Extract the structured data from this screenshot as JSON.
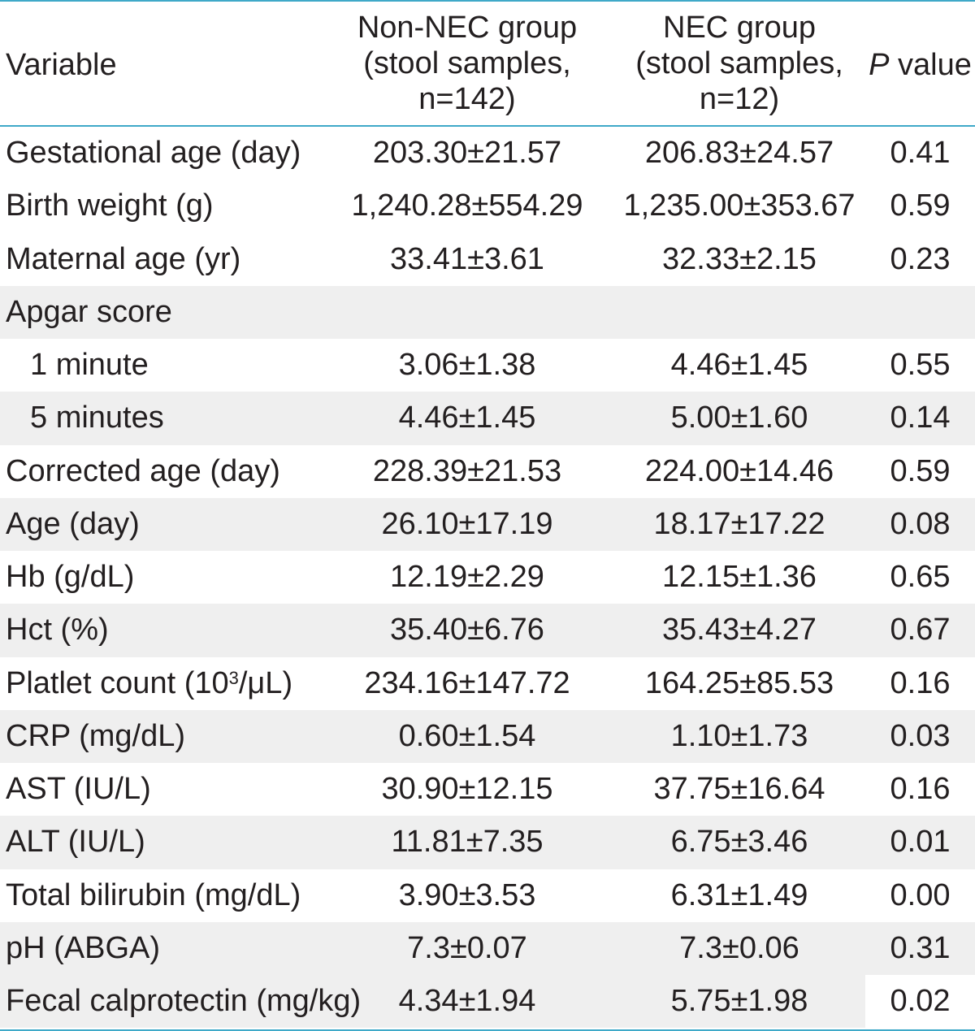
{
  "header": {
    "variable": "Variable",
    "non_nec": [
      "Non-NEC group",
      "(stool samples,",
      "n=142)"
    ],
    "nec": [
      "NEC group",
      "(stool samples,",
      "n=12)"
    ],
    "p_italic": "P",
    "p_rest": " value"
  },
  "rows": [
    {
      "label": "Gestational age (day)",
      "non_nec": "203.30±21.57",
      "nec": "206.83±24.57",
      "p": "0.41",
      "shade": false
    },
    {
      "label": "Birth weight (g)",
      "non_nec": "1,240.28±554.29",
      "nec": "1,235.00±353.67",
      "p": "0.59",
      "shade": false
    },
    {
      "label": "Maternal age (yr)",
      "non_nec": "33.41±3.61",
      "nec": "32.33±2.15",
      "p": "0.23",
      "shade": false
    },
    {
      "label": "Apgar score",
      "non_nec": "",
      "nec": "",
      "p": "",
      "shade": true
    },
    {
      "label": "1 minute",
      "non_nec": "3.06±1.38",
      "nec": "4.46±1.45",
      "p": "0.55",
      "shade": false,
      "indent": true
    },
    {
      "label": "5 minutes",
      "non_nec": "4.46±1.45",
      "nec": "5.00±1.60",
      "p": "0.14",
      "shade": true,
      "indent": true
    },
    {
      "label": "Corrected age (day)",
      "non_nec": "228.39±21.53",
      "nec": "224.00±14.46",
      "p": "0.59",
      "shade": false
    },
    {
      "label": "Age (day)",
      "non_nec": "26.10±17.19",
      "nec": "18.17±17.22",
      "p": "0.08",
      "shade": true
    },
    {
      "label": "Hb (g/dL)",
      "non_nec": "12.19±2.29",
      "nec": "12.15±1.36",
      "p": "0.65",
      "shade": false
    },
    {
      "label": "Hct (%)",
      "non_nec": "35.40±6.76",
      "nec": "35.43±4.27",
      "p": "0.67",
      "shade": true
    },
    {
      "label_pre": "Platlet count (10",
      "label_sup": "3",
      "label_post": "/μL)",
      "non_nec": "234.16±147.72",
      "nec": "164.25±85.53",
      "p": "0.16",
      "shade": false
    },
    {
      "label": "CRP (mg/dL)",
      "non_nec": "0.60±1.54",
      "nec": "1.10±1.73",
      "p": "0.03",
      "shade": true
    },
    {
      "label": "AST (IU/L)",
      "non_nec": "30.90±12.15",
      "nec": "37.75±16.64",
      "p": "0.16",
      "shade": false
    },
    {
      "label": "ALT (IU/L)",
      "non_nec": "11.81±7.35",
      "nec": "6.75±3.46",
      "p": "0.01",
      "shade": true
    },
    {
      "label": "Total bilirubin (mg/dL)",
      "non_nec": "3.90±3.53",
      "nec": "6.31±1.49",
      "p": "0.00",
      "shade": false
    },
    {
      "label": "pH (ABGA)",
      "non_nec": "7.3±0.07",
      "nec": "7.3±0.06",
      "p": "0.31",
      "shade": true
    },
    {
      "label": "Fecal calprotectin (mg/kg)",
      "non_nec": "4.34±1.94",
      "nec": "5.75±1.98",
      "p": "0.02",
      "shade": true,
      "p_white": true
    }
  ],
  "colors": {
    "rule": "#3fa9c8",
    "shade": "#efefef",
    "text": "#231f20"
  }
}
